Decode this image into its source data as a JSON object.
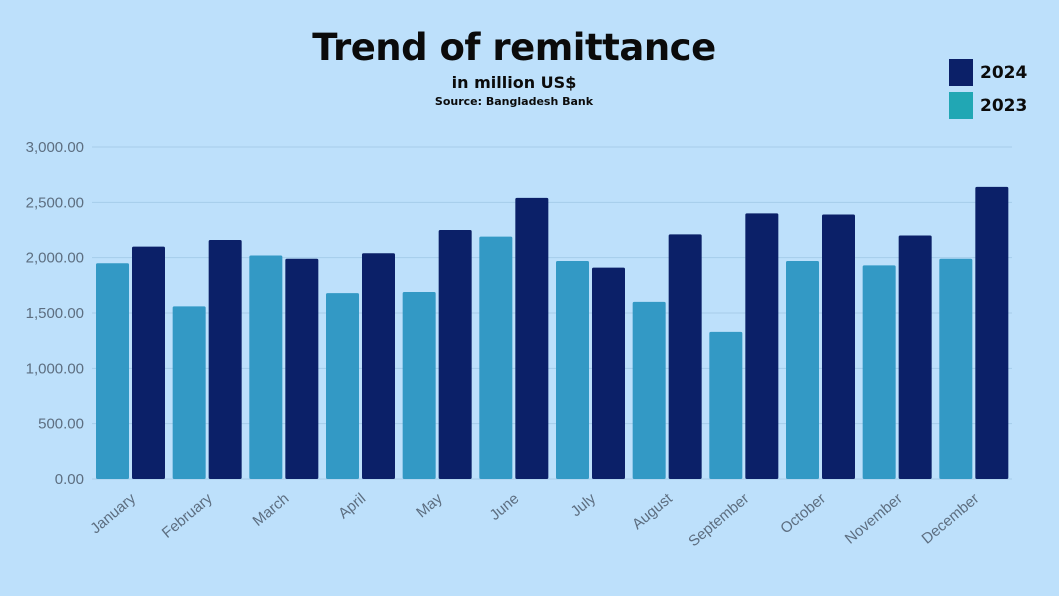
{
  "header": {
    "title": "Trend of remittance",
    "subtitle": "in million US$",
    "source": "Source: Bangladesh Bank"
  },
  "legend": [
    {
      "label": "2024",
      "color": "#0b2068"
    },
    {
      "label": "2023",
      "color": "#21a7b4"
    }
  ],
  "chart_data": {
    "type": "bar",
    "title": "Trend of remittance",
    "subtitle": "in million US$",
    "categories": [
      "January",
      "February",
      "March",
      "April",
      "May",
      "June",
      "July",
      "August",
      "September",
      "October",
      "November",
      "December"
    ],
    "series": [
      {
        "name": "2023",
        "color": "#3399c5",
        "values": [
          1950,
          1560,
          2020,
          1680,
          1690,
          2190,
          1970,
          1600,
          1330,
          1970,
          1930,
          1990
        ]
      },
      {
        "name": "2024",
        "color": "#0b2068",
        "values": [
          2100,
          2160,
          1990,
          2040,
          2250,
          2540,
          1910,
          2210,
          2400,
          2390,
          2200,
          2640
        ]
      }
    ],
    "ylim": [
      0,
      3000
    ],
    "yticks": [
      0,
      500,
      1000,
      1500,
      2000,
      2500,
      3000
    ],
    "ytick_labels": [
      "0.00",
      "500.00",
      "1,000.00",
      "1,500.00",
      "2,000.00",
      "2,500.00",
      "3,000.00"
    ],
    "grid": true,
    "legend_position": "top-right"
  }
}
